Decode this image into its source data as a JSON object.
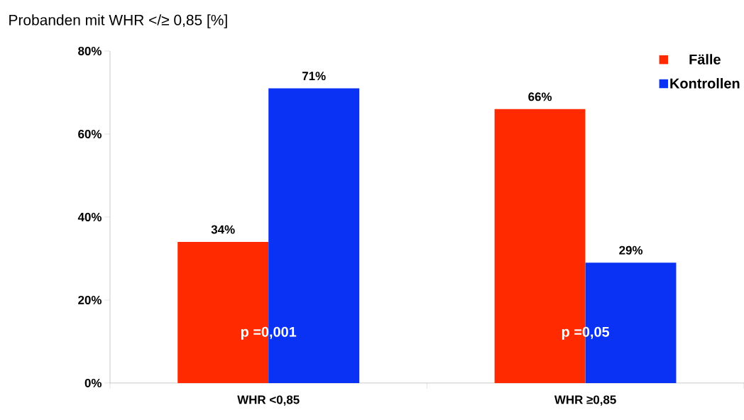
{
  "chart_data": {
    "type": "bar",
    "title": "Probanden mit WHR </≥ 0,85 [%]",
    "categories": [
      "WHR <0,85",
      "WHR ≥0,85"
    ],
    "series": [
      {
        "name": "Fälle",
        "color": "#ff2a00",
        "values": [
          34,
          66
        ],
        "value_labels": [
          "34%",
          "66%"
        ]
      },
      {
        "name": "Kontrollen",
        "color": "#0a32f5",
        "values": [
          71,
          29
        ],
        "value_labels": [
          "71%",
          "29%"
        ]
      }
    ],
    "ylim": [
      0,
      80
    ],
    "yticks": [
      {
        "value": 0,
        "label": "0%"
      },
      {
        "value": 20,
        "label": "20%"
      },
      {
        "value": 40,
        "label": "40%"
      },
      {
        "value": 60,
        "label": "60%"
      },
      {
        "value": 80,
        "label": "80%"
      }
    ],
    "legend": "top right",
    "annotations": [
      {
        "text": "p =0,001",
        "x": "WHR <0,85",
        "y": 12
      },
      {
        "text": "p =0,05",
        "x": "WHR ≥0,85",
        "y": 12
      }
    ]
  }
}
